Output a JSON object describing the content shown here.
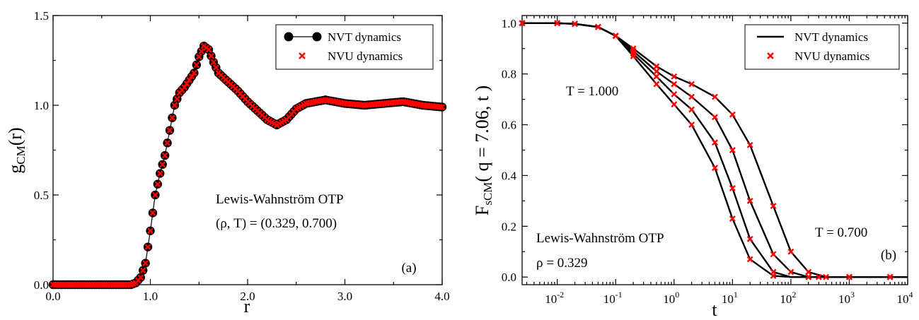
{
  "chart_data": [
    {
      "panel": "(a)",
      "type": "line",
      "xlabel": "r",
      "ylabel_main": "g",
      "ylabel_sub": "CM",
      "ylabel_tail": "(r)",
      "xlim": [
        0.0,
        4.0
      ],
      "ylim": [
        0.0,
        1.5
      ],
      "x_ticks": [
        0.0,
        1.0,
        2.0,
        3.0,
        4.0
      ],
      "x_tick_labels": [
        "0.0",
        "1.0",
        "2.0",
        "3.0",
        "4.0"
      ],
      "y_ticks": [
        0.0,
        0.5,
        1.0,
        1.5
      ],
      "y_tick_labels": [
        "0.0",
        "0.5",
        "1.0",
        "1.5"
      ],
      "annotations": [
        "Lewis-Wahnström OTP",
        "(ρ, T) = (0.329, 0.700)"
      ],
      "legend": {
        "position": "top-right",
        "entries": [
          "NVT dynamics",
          "NVU dynamics"
        ]
      },
      "series": [
        {
          "name": "NVT dynamics",
          "marker": "circle-line",
          "color": "#000000",
          "points": [
            [
              0.0,
              0.0
            ],
            [
              0.4,
              0.0
            ],
            [
              0.8,
              0.0
            ],
            [
              0.85,
              0.01
            ],
            [
              0.9,
              0.04
            ],
            [
              0.95,
              0.12
            ],
            [
              1.0,
              0.3
            ],
            [
              1.05,
              0.5
            ],
            [
              1.1,
              0.62
            ],
            [
              1.15,
              0.72
            ],
            [
              1.2,
              0.86
            ],
            [
              1.25,
              1.0
            ],
            [
              1.3,
              1.07
            ],
            [
              1.35,
              1.1
            ],
            [
              1.4,
              1.14
            ],
            [
              1.45,
              1.18
            ],
            [
              1.5,
              1.27
            ],
            [
              1.55,
              1.33
            ],
            [
              1.6,
              1.31
            ],
            [
              1.65,
              1.24
            ],
            [
              1.7,
              1.18
            ],
            [
              1.8,
              1.13
            ],
            [
              1.9,
              1.08
            ],
            [
              2.0,
              1.02
            ],
            [
              2.1,
              0.97
            ],
            [
              2.2,
              0.92
            ],
            [
              2.3,
              0.89
            ],
            [
              2.4,
              0.92
            ],
            [
              2.5,
              0.98
            ],
            [
              2.6,
              1.01
            ],
            [
              2.7,
              1.02
            ],
            [
              2.8,
              1.03
            ],
            [
              2.9,
              1.02
            ],
            [
              3.0,
              1.01
            ],
            [
              3.2,
              1.0
            ],
            [
              3.4,
              1.01
            ],
            [
              3.6,
              1.02
            ],
            [
              3.8,
              1.0
            ],
            [
              4.0,
              0.99
            ]
          ]
        },
        {
          "name": "NVU dynamics",
          "marker": "x",
          "color": "#ff0000",
          "points": [
            [
              0.0,
              0.0
            ],
            [
              0.4,
              0.0
            ],
            [
              0.8,
              0.0
            ],
            [
              0.85,
              0.01
            ],
            [
              0.9,
              0.04
            ],
            [
              0.95,
              0.12
            ],
            [
              1.0,
              0.3
            ],
            [
              1.05,
              0.5
            ],
            [
              1.1,
              0.62
            ],
            [
              1.15,
              0.72
            ],
            [
              1.2,
              0.86
            ],
            [
              1.25,
              1.0
            ],
            [
              1.3,
              1.07
            ],
            [
              1.35,
              1.1
            ],
            [
              1.4,
              1.14
            ],
            [
              1.45,
              1.18
            ],
            [
              1.5,
              1.27
            ],
            [
              1.55,
              1.33
            ],
            [
              1.6,
              1.31
            ],
            [
              1.65,
              1.24
            ],
            [
              1.7,
              1.18
            ],
            [
              1.8,
              1.13
            ],
            [
              1.9,
              1.08
            ],
            [
              2.0,
              1.02
            ],
            [
              2.1,
              0.97
            ],
            [
              2.2,
              0.92
            ],
            [
              2.3,
              0.89
            ],
            [
              2.4,
              0.92
            ],
            [
              2.5,
              0.98
            ],
            [
              2.6,
              1.01
            ],
            [
              2.7,
              1.02
            ],
            [
              2.8,
              1.03
            ],
            [
              2.9,
              1.02
            ],
            [
              3.0,
              1.01
            ],
            [
              3.2,
              1.0
            ],
            [
              3.4,
              1.01
            ],
            [
              3.6,
              1.02
            ],
            [
              3.8,
              1.0
            ],
            [
              4.0,
              0.99
            ]
          ]
        }
      ]
    },
    {
      "panel": "(b)",
      "type": "line",
      "xlabel": "t",
      "ylabel_main": "F",
      "ylabel_sub": "sCM",
      "ylabel_tail": "( q = 7.06, t )",
      "x_scale": "log",
      "xlim": [
        0.0025,
        10000
      ],
      "ylim": [
        -0.03,
        1.03
      ],
      "x_ticks": [
        0.01,
        0.1,
        1,
        10,
        100,
        1000,
        10000
      ],
      "x_tick_base": "10",
      "x_tick_exps": [
        "-2",
        "-1",
        "0",
        "1",
        "2",
        "3",
        "4"
      ],
      "y_ticks": [
        0.0,
        0.2,
        0.4,
        0.6,
        0.8,
        1.0
      ],
      "y_tick_labels": [
        "0.0",
        "0.2",
        "0.4",
        "0.6",
        "0.8",
        "1.0"
      ],
      "annotations": [
        "T = 1.000",
        "T = 0.700",
        "Lewis-Wahnström OTP",
        "ρ = 0.329"
      ],
      "legend": {
        "position": "top-right",
        "entries": [
          "NVT dynamics",
          "NVU dynamics"
        ]
      },
      "series": [
        {
          "name": "NVT dynamics",
          "color": "#000000",
          "points": [
            [
              0.0025,
              1.0
            ],
            [
              0.01,
              1.0
            ],
            [
              0.02,
              0.997
            ],
            [
              0.05,
              0.985
            ],
            [
              0.1,
              0.95
            ],
            [
              0.2,
              0.87
            ],
            [
              0.5,
              0.76
            ],
            [
              1,
              0.68
            ],
            [
              2,
              0.6
            ],
            [
              5,
              0.43
            ],
            [
              10,
              0.23
            ],
            [
              20,
              0.07
            ],
            [
              50,
              0.005
            ],
            [
              100,
              0.0
            ],
            [
              1000,
              0.0
            ],
            [
              10000,
              0.0
            ]
          ]
        },
        {
          "name": "NVT dynamics",
          "color": "#000000",
          "points": [
            [
              0.0025,
              1.0
            ],
            [
              0.01,
              1.0
            ],
            [
              0.02,
              0.997
            ],
            [
              0.05,
              0.985
            ],
            [
              0.1,
              0.95
            ],
            [
              0.2,
              0.88
            ],
            [
              0.5,
              0.79
            ],
            [
              1,
              0.72
            ],
            [
              2,
              0.66
            ],
            [
              5,
              0.53
            ],
            [
              10,
              0.35
            ],
            [
              20,
              0.15
            ],
            [
              50,
              0.02
            ],
            [
              100,
              0.0
            ],
            [
              1000,
              0.0
            ],
            [
              10000,
              0.0
            ]
          ]
        },
        {
          "name": "NVT dynamics",
          "color": "#000000",
          "points": [
            [
              0.0025,
              1.0
            ],
            [
              0.01,
              1.0
            ],
            [
              0.02,
              0.997
            ],
            [
              0.05,
              0.985
            ],
            [
              0.1,
              0.95
            ],
            [
              0.2,
              0.89
            ],
            [
              0.5,
              0.81
            ],
            [
              1,
              0.76
            ],
            [
              2,
              0.71
            ],
            [
              5,
              0.63
            ],
            [
              10,
              0.5
            ],
            [
              20,
              0.3
            ],
            [
              50,
              0.09
            ],
            [
              100,
              0.02
            ],
            [
              200,
              0.0
            ],
            [
              1000,
              0.0
            ],
            [
              10000,
              0.0
            ]
          ]
        },
        {
          "name": "NVT dynamics",
          "color": "#000000",
          "points": [
            [
              0.0025,
              1.0
            ],
            [
              0.01,
              1.0
            ],
            [
              0.02,
              0.997
            ],
            [
              0.05,
              0.985
            ],
            [
              0.1,
              0.95
            ],
            [
              0.2,
              0.9
            ],
            [
              0.5,
              0.83
            ],
            [
              1,
              0.79
            ],
            [
              2,
              0.76
            ],
            [
              5,
              0.71
            ],
            [
              10,
              0.64
            ],
            [
              20,
              0.52
            ],
            [
              50,
              0.28
            ],
            [
              100,
              0.1
            ],
            [
              200,
              0.02
            ],
            [
              400,
              0.0
            ],
            [
              1000,
              0.0
            ],
            [
              10000,
              0.0
            ]
          ]
        },
        {
          "name": "NVU dynamics",
          "color": "#ff0000",
          "marker": "x",
          "points": [
            [
              0.0025,
              1.0
            ],
            [
              0.01,
              1.0
            ],
            [
              0.02,
              0.997
            ],
            [
              0.05,
              0.985
            ],
            [
              0.1,
              0.95
            ],
            [
              0.2,
              0.87
            ],
            [
              0.5,
              0.76
            ],
            [
              1,
              0.68
            ],
            [
              2,
              0.6
            ],
            [
              5,
              0.43
            ],
            [
              10,
              0.23
            ],
            [
              20,
              0.07
            ],
            [
              50,
              0.005
            ],
            [
              200,
              0.0
            ],
            [
              1000,
              0.0
            ],
            [
              5000,
              0.0
            ]
          ]
        },
        {
          "name": "NVU dynamics",
          "color": "#ff0000",
          "marker": "x",
          "points": [
            [
              0.0025,
              1.0
            ],
            [
              0.01,
              1.0
            ],
            [
              0.02,
              0.997
            ],
            [
              0.05,
              0.985
            ],
            [
              0.1,
              0.95
            ],
            [
              0.2,
              0.88
            ],
            [
              0.5,
              0.79
            ],
            [
              1,
              0.72
            ],
            [
              2,
              0.66
            ],
            [
              5,
              0.53
            ],
            [
              10,
              0.35
            ],
            [
              20,
              0.15
            ],
            [
              50,
              0.02
            ],
            [
              200,
              0.0
            ],
            [
              1000,
              0.0
            ],
            [
              5000,
              0.0
            ]
          ]
        },
        {
          "name": "NVU dynamics",
          "color": "#ff0000",
          "marker": "x",
          "points": [
            [
              0.0025,
              1.0
            ],
            [
              0.01,
              1.0
            ],
            [
              0.02,
              0.997
            ],
            [
              0.05,
              0.985
            ],
            [
              0.1,
              0.95
            ],
            [
              0.2,
              0.89
            ],
            [
              0.5,
              0.81
            ],
            [
              1,
              0.76
            ],
            [
              2,
              0.71
            ],
            [
              5,
              0.63
            ],
            [
              10,
              0.5
            ],
            [
              20,
              0.3
            ],
            [
              50,
              0.09
            ],
            [
              100,
              0.02
            ],
            [
              300,
              0.0
            ],
            [
              1000,
              0.0
            ],
            [
              5000,
              0.0
            ]
          ]
        },
        {
          "name": "NVU dynamics",
          "color": "#ff0000",
          "marker": "x",
          "points": [
            [
              0.0025,
              1.0
            ],
            [
              0.01,
              1.0
            ],
            [
              0.02,
              0.997
            ],
            [
              0.05,
              0.985
            ],
            [
              0.1,
              0.95
            ],
            [
              0.2,
              0.9
            ],
            [
              0.5,
              0.83
            ],
            [
              1,
              0.79
            ],
            [
              2,
              0.76
            ],
            [
              5,
              0.71
            ],
            [
              10,
              0.64
            ],
            [
              20,
              0.52
            ],
            [
              50,
              0.28
            ],
            [
              100,
              0.1
            ],
            [
              200,
              0.02
            ],
            [
              400,
              0.0
            ],
            [
              1000,
              0.0
            ],
            [
              5000,
              0.0
            ]
          ]
        }
      ]
    }
  ]
}
